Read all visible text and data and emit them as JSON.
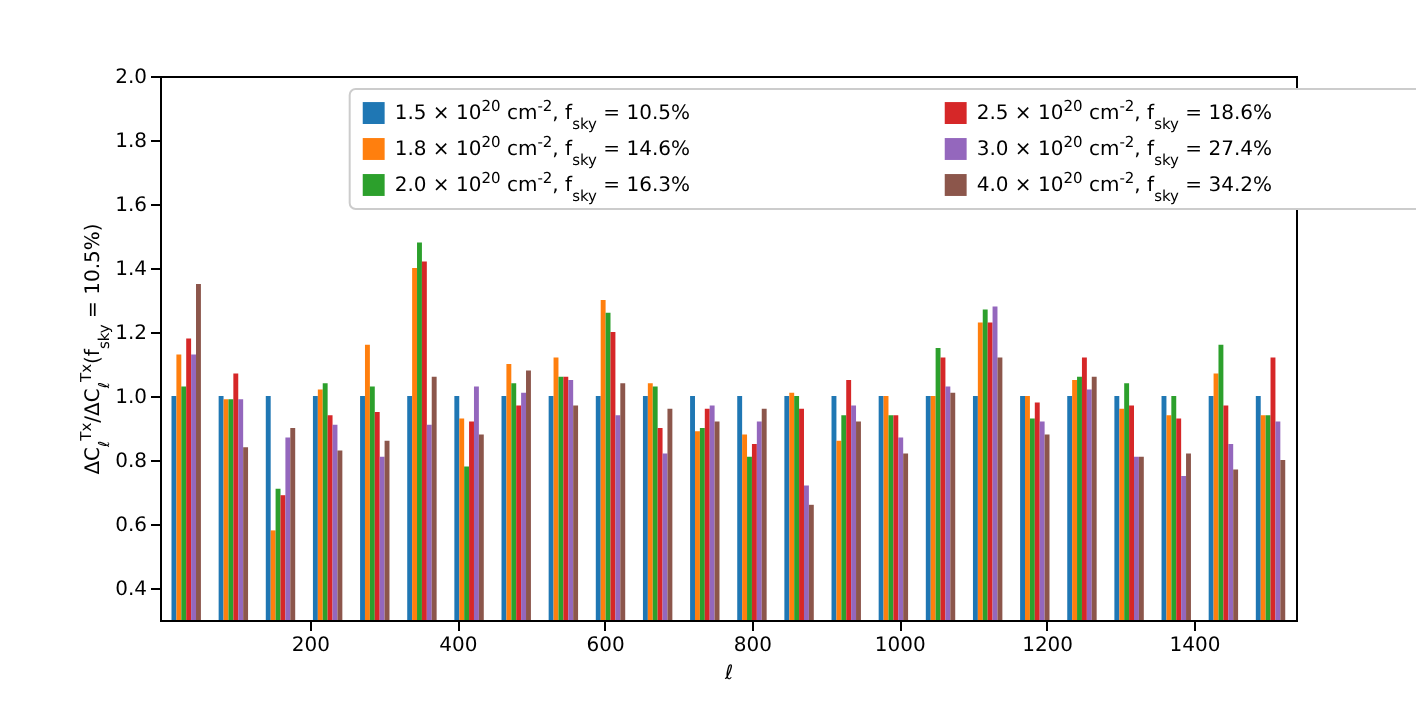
{
  "chart_data": {
    "type": "bar",
    "xlabel": "ℓ",
    "ylabel": "ΔC$_{ℓ}$$^{Tx}$/ΔC$_{ℓ}$$^{Tx}$(f$_{sky}$ = 10.5%)",
    "x": [
      32,
      96,
      160,
      224,
      288,
      352,
      416,
      480,
      544,
      608,
      672,
      736,
      800,
      864,
      928,
      992,
      1056,
      1120,
      1184,
      1248,
      1312,
      1376,
      1440,
      1504
    ],
    "series": [
      {
        "name": "1.5 × 10$^{20}$ cm$^{-2}$, f$_{sky}$ = 10.5%",
        "color": "#1f77b4",
        "values": [
          1.0,
          1.0,
          1.0,
          1.0,
          1.0,
          1.0,
          1.0,
          1.0,
          1.0,
          1.0,
          1.0,
          1.0,
          1.0,
          1.0,
          1.0,
          1.0,
          1.0,
          1.0,
          1.0,
          1.0,
          1.0,
          1.0,
          1.0,
          1.0
        ]
      },
      {
        "name": "1.8 × 10$^{20}$ cm$^{-2}$, f$_{sky}$ = 14.6%",
        "color": "#ff7f0e",
        "values": [
          1.13,
          0.99,
          0.58,
          1.02,
          1.16,
          1.4,
          0.93,
          1.1,
          1.12,
          1.3,
          1.04,
          0.89,
          0.88,
          1.01,
          0.86,
          1.0,
          1.0,
          1.23,
          1.0,
          1.05,
          0.96,
          0.94,
          1.07,
          0.94
        ]
      },
      {
        "name": "2.0 × 10$^{20}$ cm$^{-2}$, f$_{sky}$ = 16.3%",
        "color": "#2ca02c",
        "values": [
          1.03,
          0.99,
          0.71,
          1.04,
          1.03,
          1.48,
          0.78,
          1.04,
          1.06,
          1.26,
          1.03,
          0.9,
          0.81,
          1.0,
          0.94,
          0.94,
          1.15,
          1.27,
          0.93,
          1.06,
          1.04,
          1.0,
          1.16,
          0.94
        ]
      },
      {
        "name": "2.5 × 10$^{20}$ cm$^{-2}$, f$_{sky}$ = 18.6%",
        "color": "#d62728",
        "values": [
          1.18,
          1.07,
          0.69,
          0.94,
          0.95,
          1.42,
          0.92,
          0.97,
          1.06,
          1.2,
          0.9,
          0.96,
          0.85,
          0.96,
          1.05,
          0.94,
          1.12,
          1.23,
          0.98,
          1.12,
          0.97,
          0.93,
          0.97,
          1.12
        ]
      },
      {
        "name": "3.0 × 10$^{20}$ cm$^{-2}$, f$_{sky}$ = 27.4%",
        "color": "#9467bd",
        "values": [
          1.13,
          0.99,
          0.87,
          0.91,
          0.81,
          0.91,
          1.03,
          1.01,
          1.05,
          0.94,
          0.82,
          0.97,
          0.92,
          0.72,
          0.97,
          0.87,
          1.03,
          1.28,
          0.92,
          1.02,
          0.81,
          0.75,
          0.85,
          0.92
        ]
      },
      {
        "name": "4.0 × 10$^{20}$ cm$^{-2}$, f$_{sky}$ = 34.2%",
        "color": "#8c564b",
        "values": [
          1.35,
          0.84,
          0.9,
          0.83,
          0.86,
          1.06,
          0.88,
          1.08,
          0.97,
          1.04,
          0.96,
          0.92,
          0.96,
          0.66,
          0.92,
          0.82,
          1.01,
          1.12,
          0.88,
          1.06,
          0.81,
          0.82,
          0.77,
          0.8
        ]
      }
    ],
    "xlim": [
      10,
      1525
    ],
    "xticks": [
      200,
      400,
      600,
      800,
      1000,
      1200,
      1400
    ],
    "ylim": [
      0.3,
      2.0
    ],
    "yticks": [
      0.4,
      0.6,
      0.8,
      {
        "value": 1.0,
        "label": "1.0"
      },
      1.2,
      1.4,
      1.6,
      1.8,
      {
        "value": 2.0,
        "label": "2.0"
      }
    ],
    "grid": false,
    "legend": "top right"
  }
}
